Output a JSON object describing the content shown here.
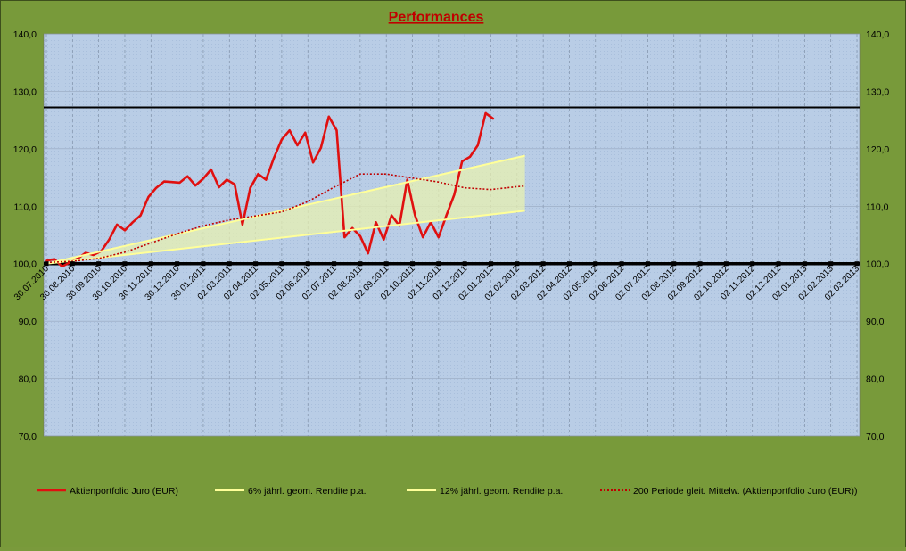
{
  "chart_data": {
    "type": "line",
    "title": "Performances",
    "y_left_ticks": [
      "140,0",
      "130,0",
      "120,0",
      "110,0",
      "100,0",
      "90,0",
      "80,0",
      "70,0"
    ],
    "y_right_ticks": [
      "140,0",
      "130,0",
      "120,0",
      "110,0",
      "100,0",
      "90,0",
      "80,0",
      "70,0"
    ],
    "ylim": [
      70,
      140
    ],
    "x_tick_labels": [
      "30.07.2010",
      "30.08.2010",
      "30.09.2010",
      "30.10.2010",
      "30.11.2010",
      "30.12.2010",
      "30.01.2011",
      "02.03.2011",
      "02.04.2011",
      "02.05.2011",
      "02.06.2011",
      "02.07.2011",
      "02.08.2011",
      "02.09.2011",
      "02.10.2011",
      "02.11.2011",
      "02.12.2011",
      "02.01.2012",
      "02.02.2012",
      "02.03.2012",
      "02.04.2012",
      "02.05.2012",
      "02.06.2012",
      "02.07.2012",
      "02.08.2012",
      "02.09.2012",
      "02.10.2012",
      "02.11.2012",
      "02.12.2012",
      "02.01.2013",
      "02.02.2013",
      "02.03.2013"
    ],
    "horizontal_lines": [
      127.2,
      100.0
    ],
    "series": [
      {
        "name": "Aktienportfolio Juro (EUR)",
        "color": "#e01010",
        "x": [
          0,
          0.3,
          0.6,
          0.9,
          1.2,
          1.5,
          1.8,
          2.1,
          2.4,
          2.7,
          3.0,
          3.3,
          3.6,
          3.9,
          4.2,
          4.5,
          4.8,
          5.1,
          5.4,
          5.7,
          6.0,
          6.3,
          6.6,
          6.9,
          7.2,
          7.5,
          7.8,
          8.1,
          8.4,
          8.7,
          9.0,
          9.3,
          9.6,
          9.9,
          10.2,
          10.5,
          10.8,
          11.1,
          11.4,
          11.7,
          12.0,
          12.3,
          12.6,
          12.9,
          13.2,
          13.5,
          13.8,
          14.1,
          14.4,
          14.7,
          15.0,
          15.3,
          15.6,
          15.9,
          16.2,
          16.5,
          16.8,
          17.1,
          17.4,
          17.7,
          18.0,
          18.15,
          18.3
        ],
        "y": [
          100.5,
          100.8,
          99.5,
          100.2,
          100.9,
          101.9,
          101.5,
          102.2,
          104.2,
          106.8,
          105.8,
          107.2,
          108.4,
          111.6,
          113.2,
          114.3,
          114.2,
          114.1,
          115.2,
          113.6,
          114.8,
          116.4,
          113.3,
          114.6,
          113.8,
          106.8,
          113.2,
          115.6,
          114.6,
          118.4,
          121.6,
          123.2,
          120.6,
          122.8,
          117.6,
          120.2,
          125.6,
          123.2,
          104.6,
          106.2,
          104.8,
          101.8,
          107.2,
          104.2,
          108.4,
          106.6,
          114.6,
          108.4,
          104.6,
          107.2,
          104.6,
          108.4,
          112.0,
          117.8,
          118.6,
          120.6,
          126.2,
          125.2,
          null,
          null,
          null,
          null,
          null
        ]
      },
      {
        "name": "6% jährl. geom. Rendite p.a.",
        "color": "#ffff99",
        "x": [
          0,
          18.3
        ],
        "y": [
          100.0,
          109.2
        ]
      },
      {
        "name": "12% jährl. geom. Rendite p.a.",
        "color": "#ffff99",
        "x": [
          0,
          18.3
        ],
        "y": [
          100.0,
          118.8
        ]
      },
      {
        "name": "200 Periode gleit. Mittelw. (Aktienportfolio Juro (EUR))",
        "color": "#c00000",
        "x": [
          0,
          1,
          2,
          3,
          4,
          5,
          6,
          7,
          8,
          9,
          10,
          11,
          12,
          13,
          14,
          15,
          16,
          17,
          18,
          18.3
        ],
        "y": [
          100.2,
          100.4,
          100.9,
          102.0,
          103.6,
          105.2,
          106.6,
          107.6,
          108.3,
          109.0,
          110.8,
          113.3,
          115.6,
          115.6,
          114.9,
          114.2,
          113.2,
          112.9,
          113.4,
          113.5
        ]
      }
    ],
    "grid": true,
    "legend_placement": "bottom"
  }
}
